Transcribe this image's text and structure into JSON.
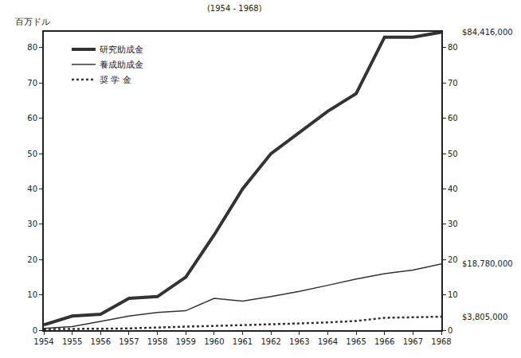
{
  "chart_data": {
    "type": "line",
    "title": "(1954 - 1968)",
    "y_label": "百万ドル",
    "x": [
      1954,
      1955,
      1956,
      1957,
      1958,
      1959,
      1960,
      1961,
      1962,
      1963,
      1964,
      1965,
      1966,
      1967,
      1968
    ],
    "series": [
      {
        "name": "研究助成金",
        "color": "#333333",
        "line_style": "thick",
        "end_label": "$84,416,000",
        "values": [
          1.5,
          4,
          4.5,
          9,
          9.5,
          15,
          27,
          40,
          50,
          56,
          62,
          67,
          83,
          83,
          84.416
        ]
      },
      {
        "name": "養成助成金",
        "color": "#333333",
        "line_style": "solid",
        "end_label": "$18,780,000",
        "values": [
          0.5,
          1,
          2.5,
          4,
          5,
          5.5,
          9,
          8.2,
          9.5,
          11,
          12.7,
          14.5,
          16,
          17,
          18.78
        ]
      },
      {
        "name": "奨 学 金",
        "color": "#333333",
        "line_style": "dot",
        "end_label": "$3,805,000",
        "values": [
          0.3,
          0.3,
          0.4,
          0.5,
          0.8,
          1,
          1.2,
          1.4,
          1.6,
          1.9,
          2.2,
          2.6,
          3.5,
          3.7,
          3.805
        ]
      }
    ],
    "xlim": [
      1954,
      1968
    ],
    "xticks": [
      1954,
      1955,
      1956,
      1957,
      1958,
      1959,
      1960,
      1961,
      1962,
      1963,
      1964,
      1965,
      1966,
      1967,
      1968
    ],
    "ylim": [
      0,
      84.5
    ],
    "yticks": [
      0,
      10,
      20,
      30,
      40,
      50,
      60,
      70,
      80
    ],
    "y2lim": [
      0,
      84.5
    ],
    "y2ticks": [
      0,
      10,
      20,
      30,
      40,
      50,
      60,
      70,
      80
    ],
    "legend": "upper left",
    "grid": false
  }
}
